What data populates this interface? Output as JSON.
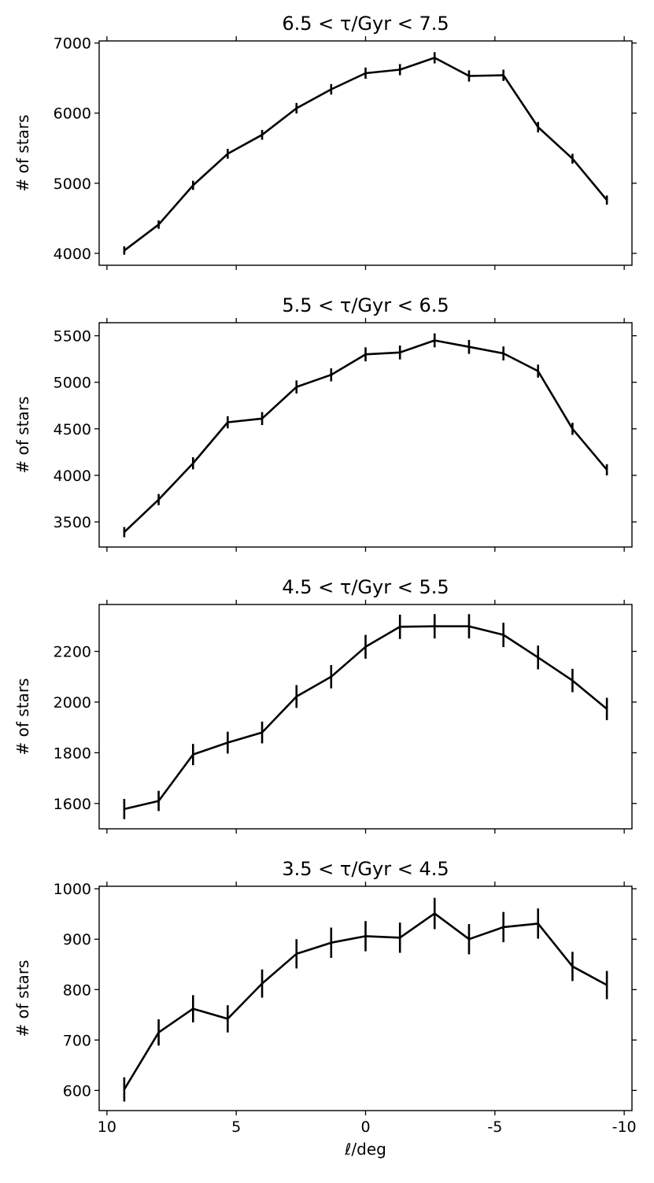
{
  "chart_data": [
    {
      "type": "line",
      "title": "6.5 < τ/Gyr < 7.5",
      "xlabel": "",
      "ylabel": "# of stars",
      "xlim": [
        10.3,
        -10.3
      ],
      "ylim": [
        3830,
        7030
      ],
      "yticks": [
        4000,
        5000,
        6000,
        7000
      ],
      "xticks": [
        10,
        5,
        0,
        -5,
        -10
      ],
      "x": [
        9.33,
        8.0,
        6.67,
        5.33,
        4.0,
        2.67,
        1.33,
        0.0,
        -1.33,
        -2.67,
        -4.0,
        -5.33,
        -6.67,
        -8.0,
        -9.33
      ],
      "y": [
        4040,
        4410,
        4970,
        5420,
        5690,
        6070,
        6340,
        6570,
        6620,
        6790,
        6530,
        6540,
        5800,
        5350,
        4760
      ],
      "yerr": [
        60,
        60,
        65,
        70,
        70,
        75,
        75,
        80,
        80,
        80,
        80,
        80,
        75,
        70,
        65
      ]
    },
    {
      "type": "line",
      "title": "5.5 < τ/Gyr < 6.5",
      "xlabel": "",
      "ylabel": "# of stars",
      "xlim": [
        10.3,
        -10.3
      ],
      "ylim": [
        3230,
        5640
      ],
      "yticks": [
        3500,
        4000,
        4500,
        5000,
        5500
      ],
      "xticks": [
        10,
        5,
        0,
        -5,
        -10
      ],
      "x": [
        9.33,
        8.0,
        6.67,
        5.33,
        4.0,
        2.67,
        1.33,
        0.0,
        -1.33,
        -2.67,
        -4.0,
        -5.33,
        -6.67,
        -8.0,
        -9.33
      ],
      "y": [
        3390,
        3740,
        4130,
        4570,
        4610,
        4950,
        5080,
        5300,
        5320,
        5450,
        5380,
        5310,
        5120,
        4500,
        4060
      ],
      "yerr": [
        55,
        60,
        65,
        65,
        70,
        70,
        70,
        75,
        75,
        75,
        75,
        75,
        70,
        65,
        60
      ]
    },
    {
      "type": "line",
      "title": "4.5 < τ/Gyr < 5.5",
      "xlabel": "",
      "ylabel": "# of stars",
      "xlim": [
        10.3,
        -10.3
      ],
      "ylim": [
        1500,
        2385
      ],
      "yticks": [
        1600,
        1800,
        2000,
        2200
      ],
      "xticks": [
        10,
        5,
        0,
        -5,
        -10
      ],
      "x": [
        9.33,
        8.0,
        6.67,
        5.33,
        4.0,
        2.67,
        1.33,
        0.0,
        -1.33,
        -2.67,
        -4.0,
        -5.33,
        -6.67,
        -8.0,
        -9.33
      ],
      "y": [
        1578,
        1610,
        1793,
        1840,
        1880,
        2022,
        2100,
        2218,
        2297,
        2299,
        2299,
        2265,
        2176,
        2085,
        1973
      ],
      "yerr": [
        40,
        40,
        42,
        43,
        43,
        45,
        46,
        47,
        48,
        48,
        48,
        48,
        47,
        46,
        44
      ]
    },
    {
      "type": "line",
      "title": "3.5 < τ/Gyr < 4.5",
      "xlabel": "ℓ/deg",
      "ylabel": "# of stars",
      "xlim": [
        10.3,
        -10.3
      ],
      "ylim": [
        560,
        1005
      ],
      "yticks": [
        600,
        700,
        800,
        900,
        1000
      ],
      "xticks": [
        10,
        5,
        0,
        -5,
        -10
      ],
      "xticklabels": [
        "10",
        "5",
        "0",
        "-5",
        "-10"
      ],
      "x": [
        9.33,
        8.0,
        6.67,
        5.33,
        4.0,
        2.67,
        1.33,
        0.0,
        -1.33,
        -2.67,
        -4.0,
        -5.33,
        -6.67,
        -8.0,
        -9.33
      ],
      "y": [
        602,
        715,
        762,
        742,
        812,
        871,
        893,
        906,
        903,
        951,
        900,
        924,
        931,
        846,
        809
      ],
      "yerr": [
        24,
        26,
        27,
        27,
        28,
        29,
        30,
        30,
        30,
        31,
        30,
        30,
        30,
        29,
        28
      ]
    }
  ]
}
